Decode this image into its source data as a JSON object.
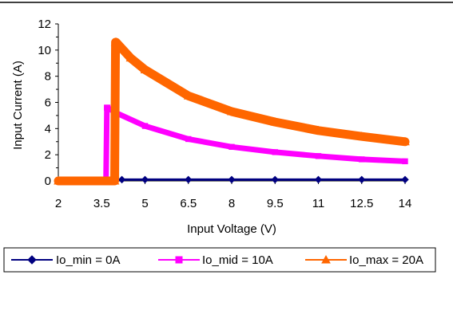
{
  "chart_data": {
    "type": "line",
    "title": "",
    "xlabel": "Input Voltage (V)",
    "ylabel": "Input Current (A)",
    "xlim": [
      2,
      14
    ],
    "ylim": [
      0,
      12
    ],
    "x_ticks": [
      "2",
      "3.5",
      "5",
      "6.5",
      "8",
      "9.5",
      "11",
      "12.5",
      "14"
    ],
    "y_ticks": [
      "0",
      "2",
      "4",
      "6",
      "8",
      "10",
      "12"
    ],
    "grid": false,
    "legend_position": "bottom",
    "series": [
      {
        "name": "Io_min = 0A",
        "color": "#000080",
        "marker": "diamond",
        "x": [
          2,
          3.5,
          4.2,
          5,
          6.5,
          8,
          9.5,
          11,
          12.5,
          14
        ],
        "y": [
          0,
          0,
          0.1,
          0.1,
          0.1,
          0.1,
          0.1,
          0.1,
          0.1,
          0.1
        ]
      },
      {
        "name": "Io_mid = 10A",
        "color": "#FF00FF",
        "marker": "square",
        "x": [
          2,
          3.65,
          3.68,
          3.7,
          4,
          5,
          6.5,
          8,
          9.5,
          11,
          12.5,
          14
        ],
        "y": [
          0,
          0,
          5.6,
          5.6,
          5.2,
          4.2,
          3.2,
          2.6,
          2.2,
          1.9,
          1.65,
          1.5
        ]
      },
      {
        "name": "Io_max = 20A",
        "color": "#FF6600",
        "marker": "triangle",
        "x": [
          2,
          3.95,
          3.98,
          4.0,
          4.5,
          5,
          6.5,
          8,
          9.5,
          11,
          12.5,
          14
        ],
        "y": [
          0,
          0,
          10.6,
          10.6,
          9.4,
          8.5,
          6.5,
          5.3,
          4.5,
          3.85,
          3.4,
          3.0
        ]
      }
    ]
  }
}
